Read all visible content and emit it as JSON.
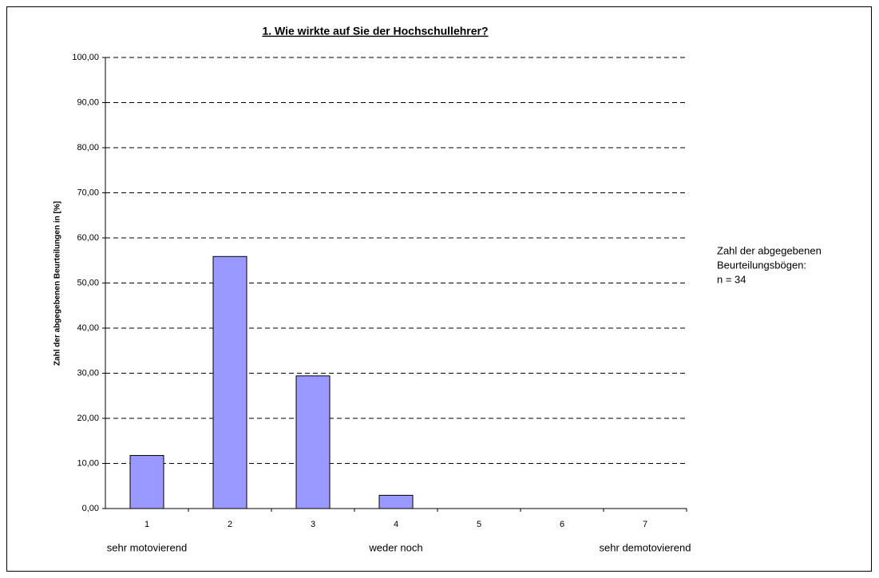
{
  "chart_data": {
    "type": "bar",
    "title": "1. Wie wirkte auf Sie der Hochschullehrer?",
    "y_label": "Zahl der abgegebenen Beurteilungen in [%]",
    "categories": [
      "1",
      "2",
      "3",
      "4",
      "5",
      "6",
      "7"
    ],
    "values": [
      11.76,
      55.88,
      29.41,
      2.94,
      0,
      0,
      0
    ],
    "color": "#9999ff",
    "ylim": [
      0,
      100
    ],
    "yticks": [
      {
        "value": 0,
        "label": "0,00"
      },
      {
        "value": 10,
        "label": "10,00"
      },
      {
        "value": 20,
        "label": "20,00"
      },
      {
        "value": 30,
        "label": "30,00"
      },
      {
        "value": 40,
        "label": "40,00"
      },
      {
        "value": 50,
        "label": "50,00"
      },
      {
        "value": 60,
        "label": "60,00"
      },
      {
        "value": 70,
        "label": "70,00"
      },
      {
        "value": 80,
        "label": "80,00"
      },
      {
        "value": 90,
        "label": "90,00"
      },
      {
        "value": 100,
        "label": "100,00"
      }
    ],
    "grid": true,
    "scale_labels": [
      "sehr motovierend",
      null,
      null,
      "weder noch",
      null,
      null,
      "sehr demotovierend"
    ],
    "annotation": [
      "Zahl der abgegebenen",
      "Beurteilungsbögen:",
      "n = 34"
    ]
  }
}
